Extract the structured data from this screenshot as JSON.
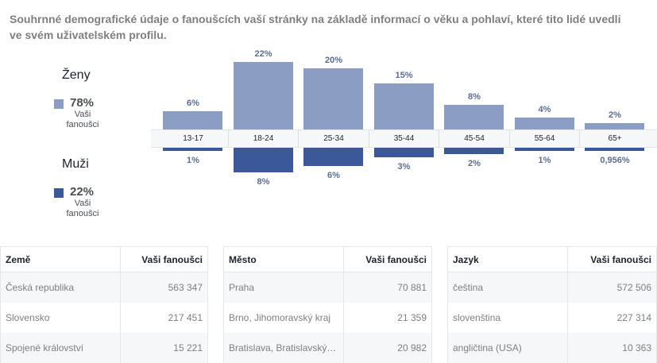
{
  "description": "Souhrnné demografické údaje o fanoušcích vaší stránky na základě informací o věku a pohlaví, které tito lidé uvedli ve svém uživatelském profilu.",
  "legend": {
    "women": {
      "title": "Ženy",
      "pct": "78%",
      "sub": "Vaši fanoušci",
      "color": "#8b9dc3"
    },
    "men": {
      "title": "Muži",
      "pct": "22%",
      "sub": "Vaši fanoušci",
      "color": "#3b5998"
    }
  },
  "chart_data": {
    "type": "bar",
    "categories": [
      "13-17",
      "18-24",
      "25-34",
      "35-44",
      "45-54",
      "55-64",
      "65+"
    ],
    "series": [
      {
        "name": "Ženy",
        "values": [
          6,
          22,
          20,
          15,
          8,
          4,
          2
        ],
        "labels": [
          "6%",
          "22%",
          "20%",
          "15%",
          "8%",
          "4%",
          "2%"
        ]
      },
      {
        "name": "Muži",
        "values": [
          1,
          8,
          6,
          3,
          2,
          1,
          0.956
        ],
        "labels": [
          "1%",
          "8%",
          "6%",
          "3%",
          "2%",
          "1%",
          "0,956%"
        ]
      }
    ]
  },
  "tables": {
    "countries": {
      "col1": "Země",
      "col2": "Vaši fanoušci",
      "rows": [
        {
          "name": "Česká republika",
          "value": "563 347"
        },
        {
          "name": "Slovensko",
          "value": "217 451"
        },
        {
          "name": "Spojené království",
          "value": "15 221"
        }
      ]
    },
    "cities": {
      "col1": "Město",
      "col2": "Vaši fanoušci",
      "rows": [
        {
          "name": "Praha",
          "value": "70 881"
        },
        {
          "name": "Brno, Jihomoravský kraj",
          "value": "21 359"
        },
        {
          "name": "Bratislava, Bratislavský…",
          "value": "20 982"
        }
      ]
    },
    "languages": {
      "col1": "Jazyk",
      "col2": "Vaši fanoušci",
      "rows": [
        {
          "name": "čeština",
          "value": "572 506"
        },
        {
          "name": "slovenština",
          "value": "227 314"
        },
        {
          "name": "angličtina (USA)",
          "value": "10 363"
        }
      ]
    }
  }
}
